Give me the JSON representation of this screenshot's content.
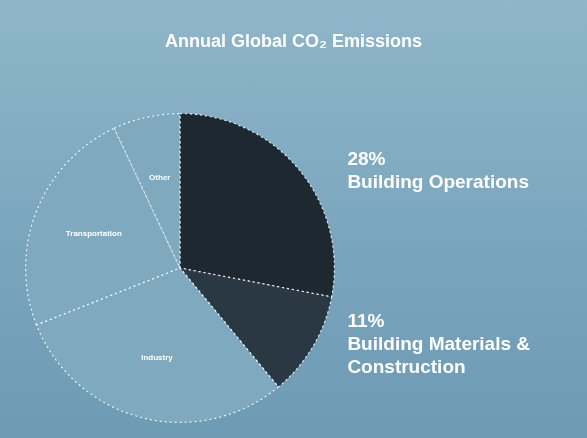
{
  "chart_data": {
    "type": "pie",
    "title": "Annual Global CO₂ Emissions",
    "categories": [
      "Building Operations",
      "Building Materials & Construction",
      "Industry",
      "Transportation",
      "Other"
    ],
    "values": [
      28,
      11,
      30,
      24,
      7
    ],
    "value_labels": [
      "28%",
      "11%",
      null,
      null,
      null
    ],
    "data_labels": true,
    "colors": [
      "#1d2831",
      "#2a3843",
      "#7fa9bf",
      "#7fa9bf",
      "#7fa9bf"
    ]
  }
}
